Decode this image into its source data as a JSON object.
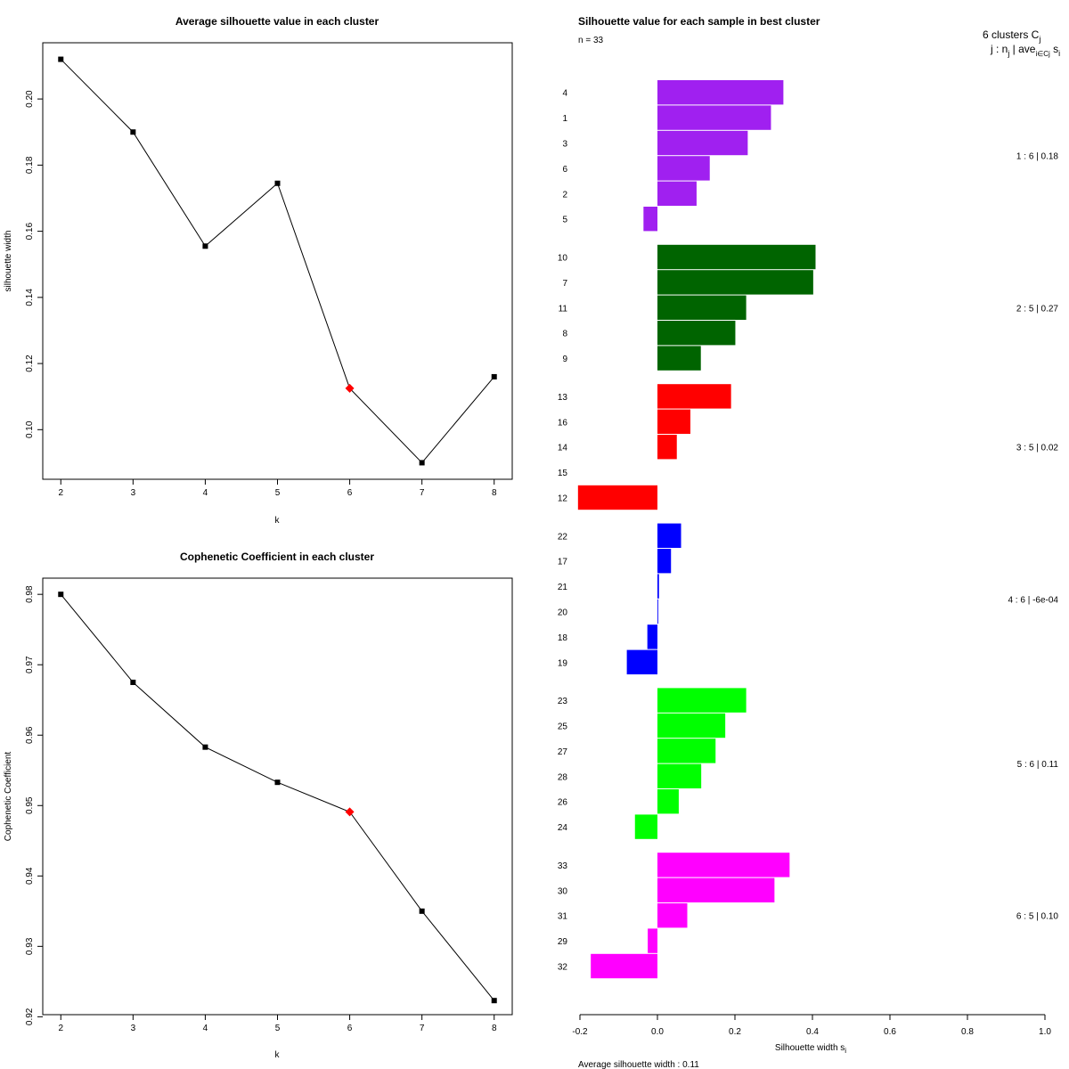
{
  "chart_data": [
    {
      "type": "line",
      "title": "Average silhouette value in each cluster",
      "xlabel": "k",
      "ylabel": "silhouette width",
      "x": [
        2,
        3,
        4,
        5,
        6,
        7,
        8
      ],
      "values": [
        0.212,
        0.19,
        0.1555,
        0.1745,
        0.1125,
        0.09,
        0.116
      ],
      "highlight_x": 6,
      "xlim": [
        1.75,
        8.25
      ],
      "ylim": [
        0.085,
        0.217
      ],
      "xticks": [
        2,
        3,
        4,
        5,
        6,
        7,
        8
      ],
      "xtick_labels": [
        "2",
        "3",
        "4",
        "5",
        "6",
        "7",
        "8"
      ],
      "yticks": [
        0.1,
        0.12,
        0.14,
        0.16,
        0.18,
        0.2
      ],
      "ytick_labels": [
        "0.10",
        "0.12",
        "0.14",
        "0.16",
        "0.18",
        "0.20"
      ],
      "colors": {
        "line": "#000000",
        "point": "#000000",
        "highlight": "#ff0000"
      }
    },
    {
      "type": "line",
      "title": "Cophenetic Coefficient in each cluster",
      "xlabel": "k",
      "ylabel": "Cophenetic Coefficient",
      "x": [
        2,
        3,
        4,
        5,
        6,
        7,
        8
      ],
      "values": [
        0.98,
        0.9675,
        0.9583,
        0.9533,
        0.9491,
        0.935,
        0.9223
      ],
      "highlight_x": 6,
      "xlim": [
        1.75,
        8.25
      ],
      "ylim": [
        0.9203,
        0.9823
      ],
      "xticks": [
        2,
        3,
        4,
        5,
        6,
        7,
        8
      ],
      "xtick_labels": [
        "2",
        "3",
        "4",
        "5",
        "6",
        "7",
        "8"
      ],
      "yticks": [
        0.92,
        0.93,
        0.94,
        0.95,
        0.96,
        0.97,
        0.98
      ],
      "ytick_labels": [
        "0.92",
        "0.93",
        "0.94",
        "0.95",
        "0.96",
        "0.97",
        "0.98"
      ],
      "colors": {
        "line": "#000000",
        "point": "#000000",
        "highlight": "#ff0000"
      }
    },
    {
      "type": "bar",
      "orientation": "horizontal",
      "title": "Silhouette value for each sample in best cluster",
      "n_label": "n = 33",
      "header_line1": "6  clusters  C",
      "header_line1_sub": "j",
      "header_line2_a": "j :  n",
      "header_line2_sub1": "j",
      "header_line2_b": " | ave",
      "header_line2_sub2": "i∈Cj",
      "header_line2_c": " s",
      "header_line2_sub3": "i",
      "xlabel": "Silhouette width s",
      "xlabel_sub": "i",
      "footer": "Average silhouette width :  0.11",
      "xlim": [
        -0.2,
        1.0
      ],
      "xticks": [
        -0.2,
        0.0,
        0.2,
        0.4,
        0.6,
        0.8,
        1.0
      ],
      "xtick_labels": [
        "-0.2",
        "0.0",
        "0.2",
        "0.4",
        "0.6",
        "0.8",
        "1.0"
      ],
      "clusters": [
        {
          "color": "#a020f0",
          "summary": "1 :  6  |  0.18",
          "samples": [
            "4",
            "1",
            "3",
            "6",
            "2",
            "5"
          ],
          "values": [
            0.325,
            0.293,
            0.233,
            0.135,
            0.101,
            -0.036
          ]
        },
        {
          "color": "#006400",
          "summary": "2 :  5  |  0.27",
          "samples": [
            "10",
            "7",
            "11",
            "8",
            "9"
          ],
          "values": [
            0.408,
            0.402,
            0.229,
            0.201,
            0.112
          ]
        },
        {
          "color": "#ff0000",
          "summary": "3 :  5  |  0.02",
          "samples": [
            "13",
            "16",
            "14",
            "15",
            "12"
          ],
          "values": [
            0.19,
            0.085,
            0.05,
            0.0,
            -0.205
          ]
        },
        {
          "color": "#0000ff",
          "summary": "4 :  6  |  -6e-04",
          "samples": [
            "22",
            "17",
            "21",
            "20",
            "18",
            "19"
          ],
          "values": [
            0.061,
            0.035,
            0.004,
            0.002,
            -0.026,
            -0.079
          ]
        },
        {
          "color": "#00ff00",
          "summary": "5 :  6  |  0.11",
          "samples": [
            "23",
            "25",
            "27",
            "28",
            "26",
            "24"
          ],
          "values": [
            0.229,
            0.175,
            0.15,
            0.113,
            0.055,
            -0.058
          ]
        },
        {
          "color": "#ff00ff",
          "summary": "6 :  5  |  0.10",
          "samples": [
            "33",
            "30",
            "31",
            "29",
            "32"
          ],
          "values": [
            0.341,
            0.302,
            0.077,
            -0.025,
            -0.172
          ]
        }
      ]
    }
  ]
}
